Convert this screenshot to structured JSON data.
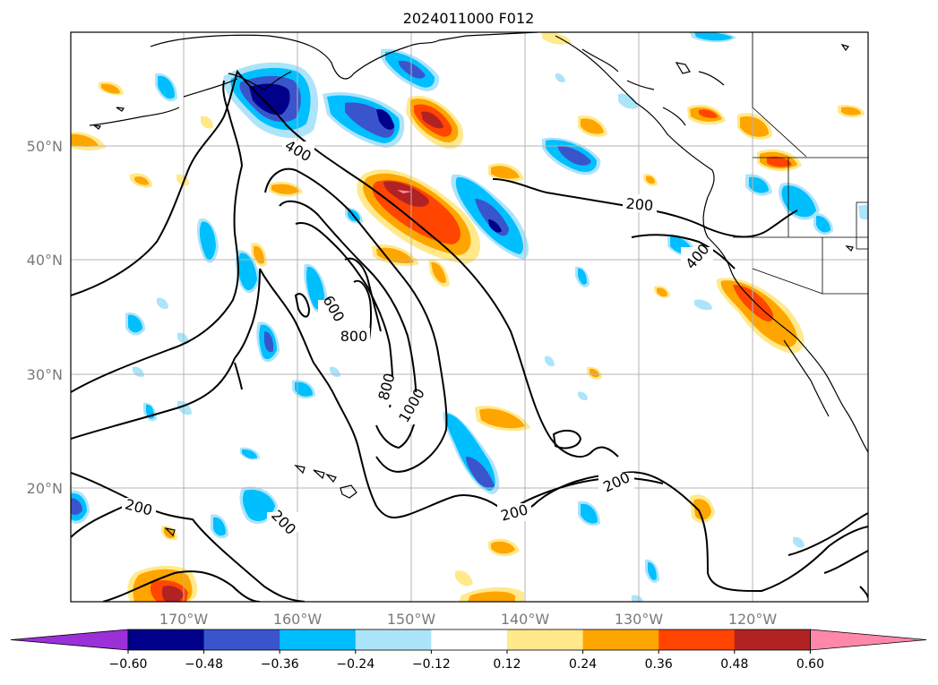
{
  "title": "2024011000 F012",
  "map": {
    "lat_labels": [
      "50°N",
      "40°N",
      "30°N",
      "20°N"
    ],
    "lon_labels": [
      "170°W",
      "160°W",
      "150°W",
      "140°W",
      "130°W",
      "120°W"
    ],
    "contour_labels": [
      "400",
      "200",
      "400",
      "600",
      "800",
      "800",
      "1000",
      "200",
      "200",
      "200",
      "200"
    ],
    "colors": {
      "neg_060": "#9b30d9",
      "neg_048": "#00008b",
      "neg_036": "#3a55cc",
      "neg_024": "#00bfff",
      "neg_012": "#ace4fa",
      "zero": "#ffffff",
      "pos_012": "#ffe98a",
      "pos_024": "#ffa500",
      "pos_036": "#ff4500",
      "pos_048": "#b22222",
      "pos_060": "#ff88aa"
    }
  },
  "colorbar": {
    "tick_labels": [
      "−0.60",
      "−0.48",
      "−0.36",
      "−0.24",
      "−0.12",
      "0.12",
      "0.24",
      "0.36",
      "0.48",
      "0.60"
    ],
    "colors": [
      "#9b30d9",
      "#00008b",
      "#3a55cc",
      "#00bfff",
      "#ace4fa",
      "#ffffff",
      "#ffe98a",
      "#ffa500",
      "#ff4500",
      "#b22222",
      "#ff88aa"
    ]
  }
}
